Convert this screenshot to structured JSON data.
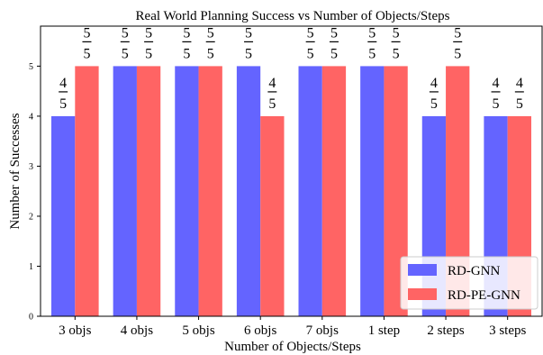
{
  "chart_data": {
    "type": "bar",
    "title": "Real World Planning Success vs Number of Objects/Steps",
    "xlabel": "Number of Objects/Steps",
    "ylabel": "Number of Successes",
    "categories": [
      "3 objs",
      "4 objs",
      "5 objs",
      "6 objs",
      "7 objs",
      "1 step",
      "2 steps",
      "3 steps"
    ],
    "ylim": [
      0,
      5.8
    ],
    "yticks": [
      0,
      1,
      2,
      3,
      4,
      5
    ],
    "grid": false,
    "legend_position": "bottom-right",
    "series": [
      {
        "name": "RD-GNN",
        "color": "#6464ff",
        "values": [
          4,
          5,
          5,
          5,
          5,
          5,
          4,
          4
        ],
        "labels": [
          {
            "num": "4",
            "den": "5"
          },
          {
            "num": "5",
            "den": "5"
          },
          {
            "num": "5",
            "den": "5"
          },
          {
            "num": "5",
            "den": "5"
          },
          {
            "num": "5",
            "den": "5"
          },
          {
            "num": "5",
            "den": "5"
          },
          {
            "num": "4",
            "den": "5"
          },
          {
            "num": "4",
            "den": "5"
          }
        ]
      },
      {
        "name": "RD-PE-GNN",
        "color": "#ff6464",
        "values": [
          5,
          5,
          5,
          4,
          5,
          5,
          5,
          4
        ],
        "labels": [
          {
            "num": "5",
            "den": "5"
          },
          {
            "num": "5",
            "den": "5"
          },
          {
            "num": "5",
            "den": "5"
          },
          {
            "num": "4",
            "den": "5"
          },
          {
            "num": "5",
            "den": "5"
          },
          {
            "num": "5",
            "den": "5"
          },
          {
            "num": "5",
            "den": "5"
          },
          {
            "num": "4",
            "den": "5"
          }
        ]
      }
    ]
  }
}
